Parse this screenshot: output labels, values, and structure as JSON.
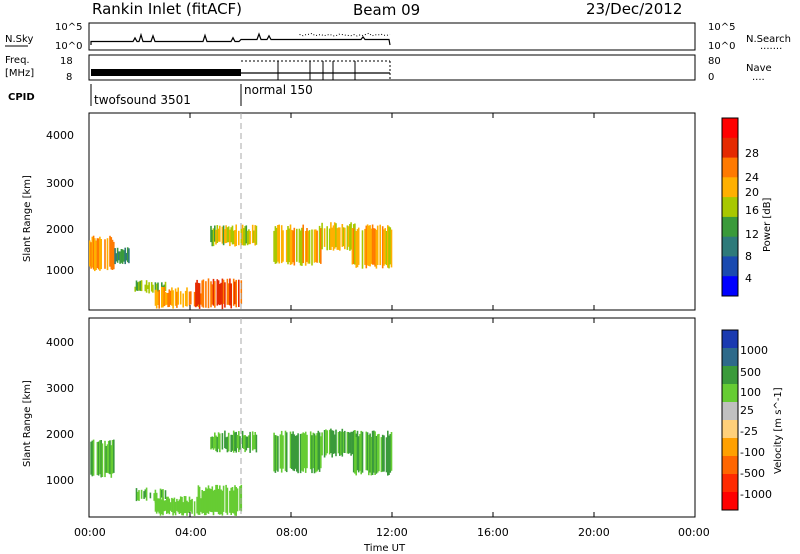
{
  "header": {
    "title": "Rankin Inlet (fitACF)",
    "beam": "Beam 09",
    "date": "23/Dec/2012"
  },
  "sky_panel": {
    "left_label": "N.Sky",
    "left_ticks": [
      "10^5",
      "10^0"
    ],
    "right_ticks": [
      "10^5",
      "10^0"
    ],
    "right_label": "N.Search",
    "right_dots": "......."
  },
  "freq_panel": {
    "left_label_line1": "Freq.",
    "left_label_line2": "[MHz]",
    "left_ticks": [
      "18",
      "8"
    ],
    "right_ticks": [
      "80",
      "0"
    ],
    "right_label": "Nave",
    "right_dots": "...."
  },
  "cpid": {
    "label": "CPID",
    "modes": [
      {
        "name": "twofsound 3501",
        "start": "00:00",
        "end": "06:00"
      },
      {
        "name": "normal 150",
        "start": "06:00",
        "end": "12:00"
      }
    ]
  },
  "power_scale": {
    "label": "Power [dB]",
    "ticks": [
      "28",
      "24",
      "20",
      "16",
      "12",
      "8",
      "4"
    ],
    "colors": [
      "#ff0000",
      "#e52a00",
      "#ff7a00",
      "#ffb000",
      "#a8c800",
      "#3a9a3a",
      "#2e7a7a",
      "#1a4ab0",
      "#0000ff"
    ]
  },
  "velocity_scale": {
    "label": "Velocity [m s^-1]",
    "ticks": [
      "1000",
      "500",
      "100",
      "25",
      "-25",
      "-100",
      "-500",
      "-1000"
    ],
    "colors": [
      "#1a3ab0",
      "#2e6a8a",
      "#3a9a3a",
      "#66cc33",
      "#c0c0c0",
      "#ffd07a",
      "#ffa000",
      "#ff6600",
      "#ff2a00",
      "#ff0000"
    ]
  },
  "axes": {
    "ylabel": "Slant Range [km]",
    "yticks": [
      "4000",
      "3000",
      "2000",
      "1000"
    ],
    "xticks": [
      "00:00",
      "04:00",
      "08:00",
      "12:00",
      "16:00",
      "20:00",
      "00:00"
    ],
    "xlabel": "Time UT"
  },
  "chart_data": [
    {
      "type": "heatmap",
      "title": "",
      "xlabel": "",
      "ylabel": "Slant Range [km]",
      "xlim_hours": [
        0,
        24
      ],
      "ylim_km": [
        180,
        4600
      ],
      "colorbar": "Power [dB]",
      "regions": [
        {
          "t0": 0.0,
          "t1": 1.0,
          "r0": 1050,
          "r1": 1850,
          "value": 22
        },
        {
          "t0": 1.0,
          "t1": 1.6,
          "r0": 1200,
          "r1": 1600,
          "value": 10
        },
        {
          "t0": 1.8,
          "t1": 3.0,
          "r0": 550,
          "r1": 850,
          "value": 14
        },
        {
          "t0": 2.6,
          "t1": 4.4,
          "r0": 200,
          "r1": 700,
          "value": 22
        },
        {
          "t0": 4.2,
          "t1": 6.0,
          "r0": 200,
          "r1": 900,
          "value": 26
        },
        {
          "t0": 4.8,
          "t1": 6.6,
          "r0": 1600,
          "r1": 2100,
          "value": 16
        },
        {
          "t0": 7.3,
          "t1": 9.2,
          "r0": 1150,
          "r1": 2100,
          "value": 20
        },
        {
          "t0": 9.2,
          "t1": 10.6,
          "r0": 1500,
          "r1": 2150,
          "value": 18
        },
        {
          "t0": 10.4,
          "t1": 12.0,
          "r0": 1100,
          "r1": 2100,
          "value": 20
        }
      ]
    },
    {
      "type": "heatmap",
      "title": "",
      "xlabel": "Time UT",
      "ylabel": "Slant Range [km]",
      "xlim_hours": [
        0,
        24
      ],
      "ylim_km": [
        180,
        4600
      ],
      "colorbar": "Velocity [m s^-1]",
      "regions": [
        {
          "t0": 0.0,
          "t1": 1.0,
          "r0": 1050,
          "r1": 1900,
          "value": 100
        },
        {
          "t0": 1.8,
          "t1": 3.0,
          "r0": 500,
          "r1": 850,
          "value": 100
        },
        {
          "t0": 2.6,
          "t1": 4.4,
          "r0": 200,
          "r1": 650,
          "value": 50
        },
        {
          "t0": 4.2,
          "t1": 6.0,
          "r0": 200,
          "r1": 900,
          "value": 50
        },
        {
          "t0": 4.8,
          "t1": 6.6,
          "r0": 1600,
          "r1": 2100,
          "value": 100
        },
        {
          "t0": 7.3,
          "t1": 9.2,
          "r0": 1150,
          "r1": 2100,
          "value": 100
        },
        {
          "t0": 9.2,
          "t1": 10.6,
          "r0": 1500,
          "r1": 2150,
          "value": 100
        },
        {
          "t0": 10.4,
          "t1": 12.0,
          "r0": 1100,
          "r1": 2100,
          "value": 100
        }
      ]
    }
  ]
}
